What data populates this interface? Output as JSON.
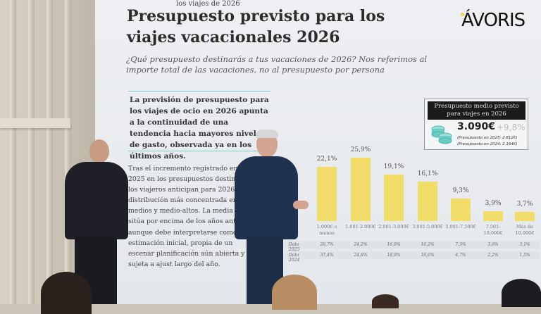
{
  "slide": {
    "kicker": "los viajes de 2026",
    "title": "Presupuesto previsto para los viajes vacacionales 2026",
    "subtitle": "¿Qué presupuesto destinarás a tus vacaciones de 2026? Nos referimos al importe total de las vacaciones, no al presupuesto por persona",
    "logo": "ÁVORIS",
    "lead": "La previsión de presupuesto para los viajes de ocio en 2026 apunta a la continuidad de una tendencia hacia mayores niveles de gasto, observada ya en los últimos años.",
    "body": "Tras el incremento registrado entre 2025 en los presupuestos destinados los viajeros anticipan para 2026 una distribución más concentrada en t medios y medio-altos. La media previ sitúa por encima de los años anterior aunque debe interpretarse como una estimación inicial, propia de un escenar planificación aún abierta y sujeta a ajust largo del año.",
    "box": {
      "header": "Presupuesto medio previsto para viajes en 2026",
      "value": "3.090€",
      "change": "+9,8%",
      "note_2025": "(Presupuesto en 2025: 2.812€)",
      "note_2024": "(Presupuesto en 2024: 2.164€)",
      "icon": "coins-icon",
      "accent": "#3fb8ae"
    }
  },
  "chart_data": {
    "type": "bar",
    "categories": [
      "1.000€ o menos",
      "1.001-2.000€",
      "2.001-3.000€",
      "3.001-5.000€",
      "5.001-7.500€",
      "7.501-10.000€",
      "Más de 10.000€"
    ],
    "values": [
      22.1,
      25.9,
      19.1,
      16.1,
      9.3,
      3.9,
      3.7
    ],
    "value_labels": [
      "22,1%",
      "25,9%",
      "19,1%",
      "16,1%",
      "9,3%",
      "3,9%",
      "3,7%"
    ],
    "bar_color": "#f2dc6a",
    "table": [
      {
        "label": "Dato 2025",
        "values": [
          "26,7%",
          "24,2%",
          "16,9%",
          "16,2%",
          "7,3%",
          "3,6%",
          "3,1%"
        ]
      },
      {
        "label": "Dato 2024",
        "values": [
          "37,4%",
          "24,8%",
          "18,9%",
          "10,6%",
          "4,7%",
          "2,2%",
          "1,5%"
        ]
      }
    ]
  }
}
